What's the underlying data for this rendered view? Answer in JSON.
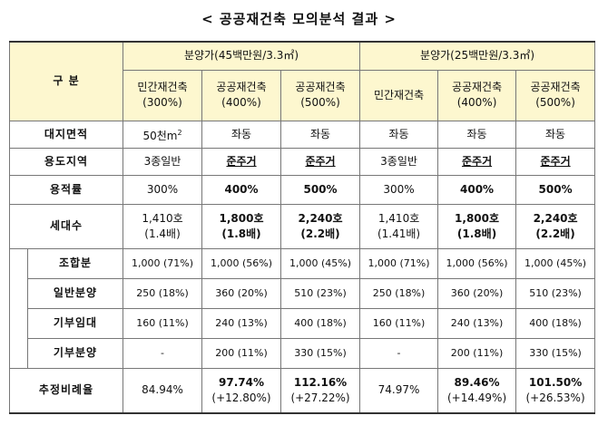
{
  "title": "< 공공재건축 모의분석 결과 >",
  "header": {
    "category": "구 분",
    "group_a": "분양가(45백만원/3.3㎡)",
    "group_b": "분양가(25백만원/3.3㎡)",
    "cols": [
      {
        "name": "민간재건축",
        "pct": "(300%)"
      },
      {
        "name": "공공재건축",
        "pct": "(400%)"
      },
      {
        "name": "공공재건축",
        "pct": "(500%)"
      },
      {
        "name": "민간재건축",
        "pct": ""
      },
      {
        "name": "공공재건축",
        "pct": "(400%)"
      },
      {
        "name": "공공재건축",
        "pct": "(500%)"
      }
    ]
  },
  "rows": {
    "land": {
      "label": "대지면적",
      "first": "50천m",
      "sup": "2",
      "rest": [
        "좌동",
        "좌동",
        "좌동",
        "좌동",
        "좌동"
      ]
    },
    "zone": {
      "label": "용도지역",
      "values": [
        "3종일반",
        "준주거",
        "준주거",
        "3종일반",
        "준주거",
        "준주거"
      ]
    },
    "far": {
      "label": "용적률",
      "values": [
        "300%",
        "400%",
        "500%",
        "300%",
        "400%",
        "500%"
      ]
    },
    "households": {
      "label": "세대수",
      "values": [
        [
          "1,410호",
          "(1.4배)"
        ],
        [
          "1,800호",
          "(1.8배)"
        ],
        [
          "2,240호",
          "(2.2배)"
        ],
        [
          "1,410호",
          "(1.41배)"
        ],
        [
          "1,800호",
          "(1.8배)"
        ],
        [
          "2,240호",
          "(2.2배)"
        ]
      ]
    },
    "union": {
      "label": "조합분",
      "values": [
        "1,000 (71%)",
        "1,000 (56%)",
        "1,000 (45%)",
        "1,000 (71%)",
        "1,000 (56%)",
        "1,000 (45%)"
      ]
    },
    "general": {
      "label": "일반분양",
      "values": [
        "250 (18%)",
        "360 (20%)",
        "510 (23%)",
        "250 (18%)",
        "360 (20%)",
        "510 (23%)"
      ]
    },
    "rental": {
      "label": "기부임대",
      "values": [
        "160 (11%)",
        "240 (13%)",
        "400 (18%)",
        "160 (11%)",
        "240 (13%)",
        "400 (18%)"
      ]
    },
    "donated": {
      "label": "기부분양",
      "values": [
        "-",
        "200 (11%)",
        "330 (15%)",
        "-",
        "200 (11%)",
        "330 (15%)"
      ]
    },
    "ratio": {
      "label": "추정비례율",
      "values": [
        [
          "84.94%",
          ""
        ],
        [
          "97.74%",
          "(+12.80%)"
        ],
        [
          "112.16%",
          "(+27.22%)"
        ],
        [
          "74.97%",
          ""
        ],
        [
          "89.46%",
          "(+14.49%)"
        ],
        [
          "101.50%",
          "(+26.53%)"
        ]
      ]
    }
  }
}
